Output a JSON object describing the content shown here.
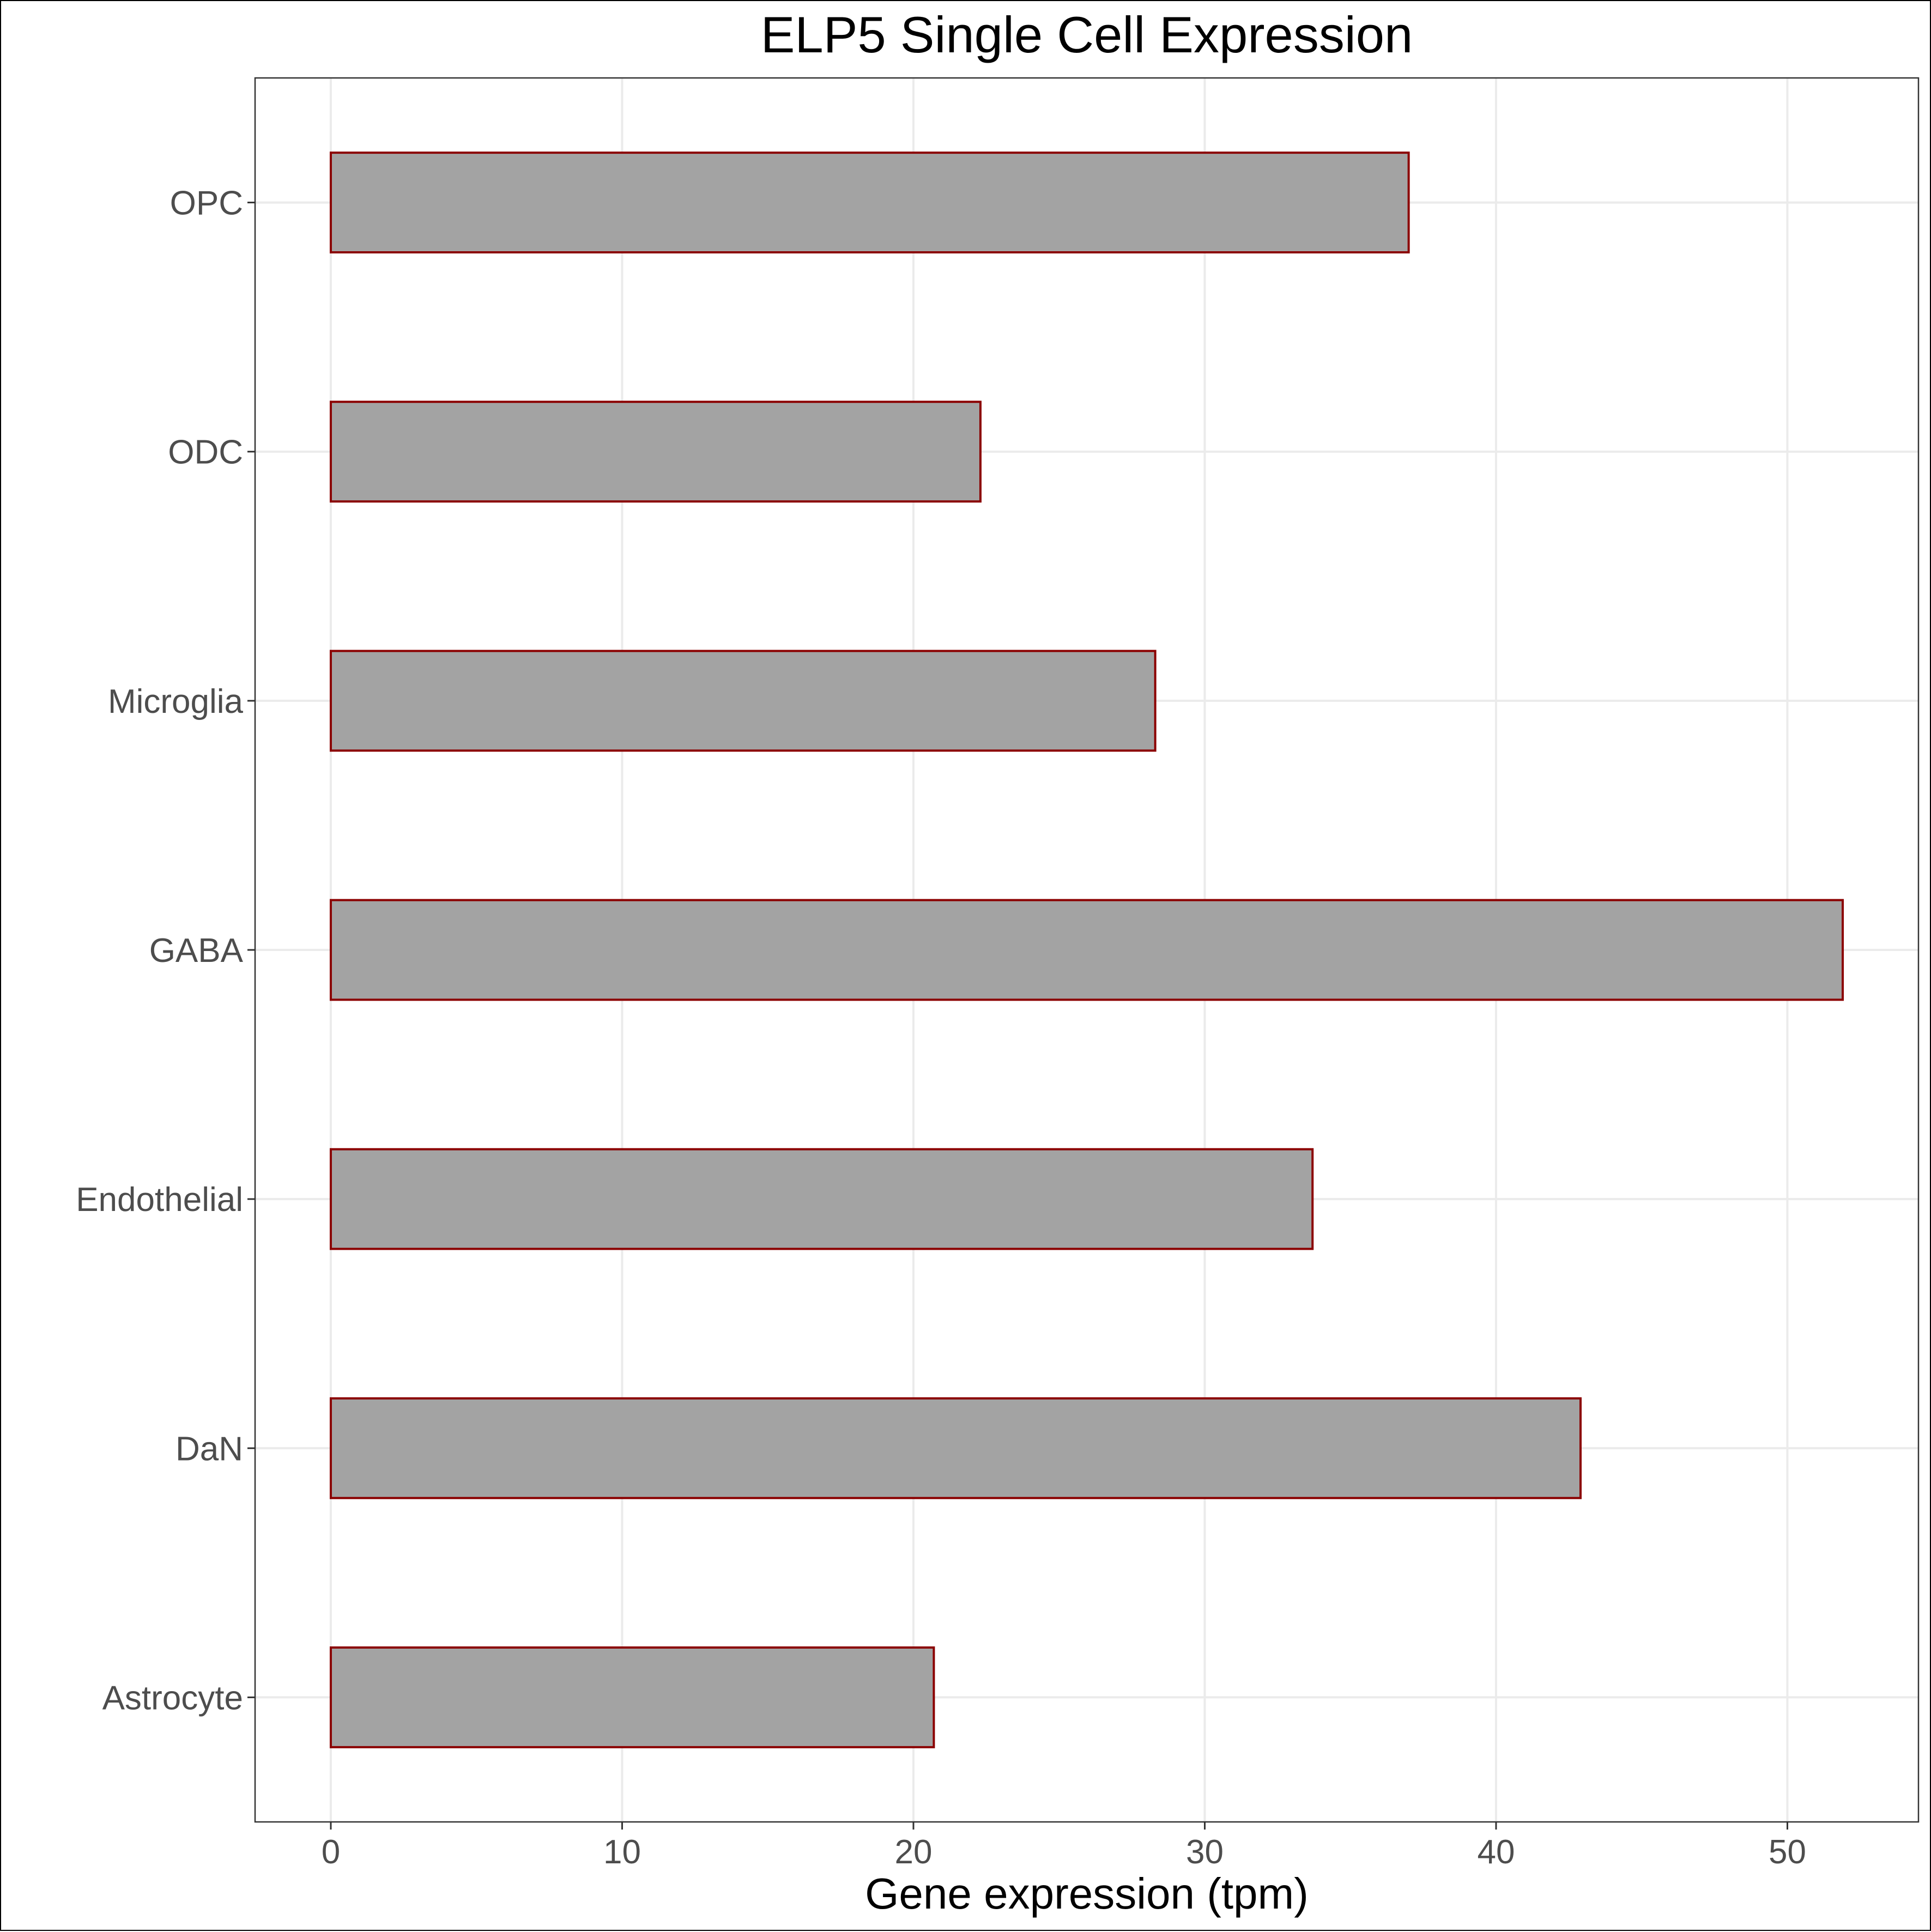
{
  "chart_data": {
    "type": "bar",
    "orientation": "horizontal",
    "title": "ELP5 Single Cell Expression",
    "xlabel": "Gene expression (tpm)",
    "ylabel": "",
    "categories": [
      "Astrocyte",
      "DaN",
      "Endothelial",
      "GABA",
      "Microglia",
      "ODC",
      "OPC"
    ],
    "values": [
      20.7,
      42.9,
      33.7,
      51.9,
      28.3,
      22.3,
      37.0
    ],
    "xlim": [
      -2.6,
      54.5
    ],
    "xticks": [
      0,
      10,
      20,
      30,
      40,
      50
    ],
    "grid": true,
    "legend": "none",
    "colors": {
      "bar_fill": "#a3a3a3",
      "bar_stroke": "#8b0000",
      "grid": "#ebebeb",
      "panel_border": "#333333"
    }
  }
}
